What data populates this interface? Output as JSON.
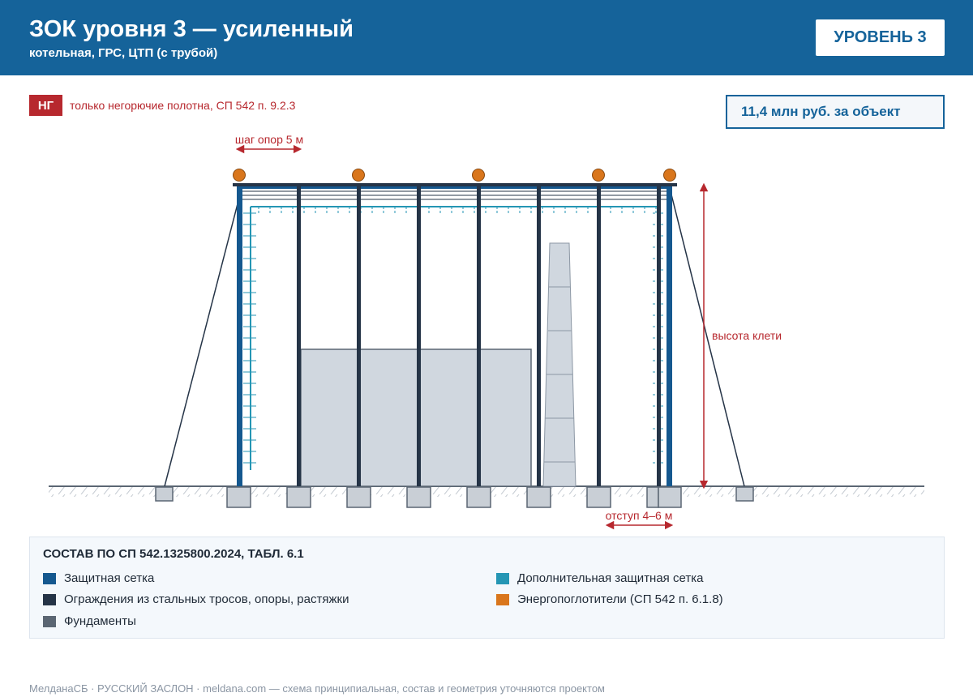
{
  "header": {
    "title": "ЗОК уровня 3 — усиленный",
    "subtitle": "котельная, ГРС, ЦТП (с трубой)",
    "level_badge": "УРОВЕНЬ 3"
  },
  "note": {
    "badge": "НГ",
    "text": "только негорючие полотна, СП 542 п. 9.2.3"
  },
  "price": "11,4 млн руб. за объект",
  "diagram": {
    "spacing_label": "шаг опор 5 м",
    "height_label": "высота клети",
    "offset_label": "отступ 4–6 м"
  },
  "legend": {
    "title": "СОСТАВ ПО СП 542.1325800.2024, ТАБЛ. 6.1",
    "items": [
      {
        "label": "Защитная сетка",
        "color": "#15588f"
      },
      {
        "label": "Ограждения из стальных тросов, опоры, растяжки",
        "color": "#253447"
      },
      {
        "label": "Фундаменты",
        "color": "#5b6673"
      },
      {
        "label": "Дополнительная защитная сетка",
        "color": "#2596b4"
      },
      {
        "label": "Энергопоглотители (СП 542 п. 6.1.8)",
        "color": "#d9761c"
      }
    ]
  },
  "footer": "МелданаСБ · РУССКИЙ ЗАСЛОН · meldana.com — схема принципиальная, состав и геометрия уточняются проектом"
}
